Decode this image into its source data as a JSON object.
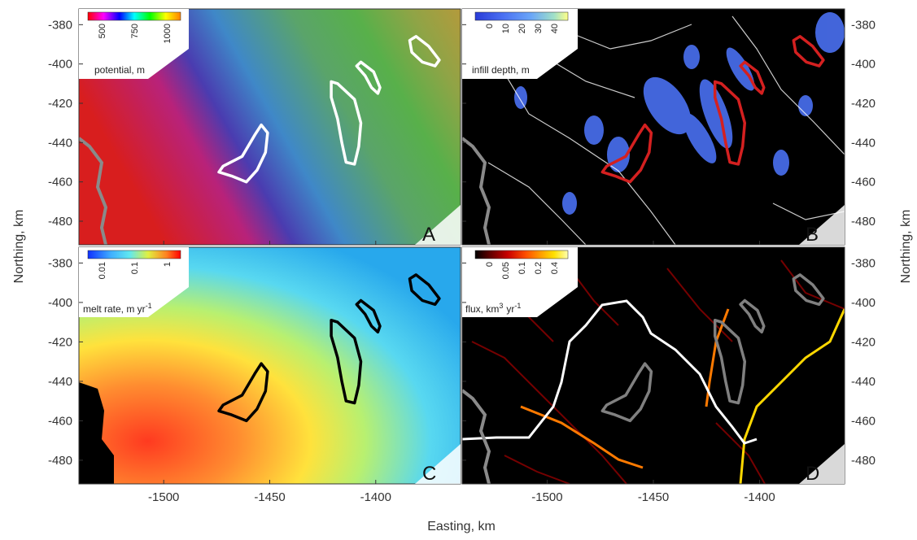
{
  "chart_data": {
    "type": "heatmap",
    "xlabel": "Easting, km",
    "ylabel": "Northing, km",
    "xlim": [
      -1540,
      -1360
    ],
    "ylim": [
      -492,
      -372
    ],
    "x_ticks": [
      "-1500",
      "-1450",
      "-1400"
    ],
    "y_ticks": [
      "-380",
      "-400",
      "-420",
      "-440",
      "-460",
      "-480"
    ],
    "outlines": [
      {
        "name": "outline-1",
        "points": [
          [
            -1472,
            -452
          ],
          [
            -1463,
            -447
          ],
          [
            -1457,
            -436
          ],
          [
            -1454,
            -431
          ],
          [
            -1451,
            -435
          ],
          [
            -1452,
            -445
          ],
          [
            -1456,
            -454
          ],
          [
            -1461,
            -460
          ],
          [
            -1468,
            -457
          ],
          [
            -1474,
            -455
          ],
          [
            -1472,
            -452
          ]
        ]
      },
      {
        "name": "outline-2",
        "points": [
          [
            -1418,
            -410
          ],
          [
            -1410,
            -418
          ],
          [
            -1407,
            -430
          ],
          [
            -1408,
            -442
          ],
          [
            -1410,
            -451
          ],
          [
            -1414,
            -450
          ],
          [
            -1416,
            -440
          ],
          [
            -1418,
            -428
          ],
          [
            -1421,
            -417
          ],
          [
            -1421,
            -409
          ],
          [
            -1418,
            -410
          ]
        ]
      },
      {
        "name": "outline-3",
        "points": [
          [
            -1407,
            -399
          ],
          [
            -1401,
            -404
          ],
          [
            -1398,
            -412
          ],
          [
            -1399,
            -415
          ],
          [
            -1402,
            -412
          ],
          [
            -1405,
            -406
          ],
          [
            -1409,
            -401
          ],
          [
            -1407,
            -399
          ]
        ]
      },
      {
        "name": "outline-4",
        "points": [
          [
            -1381,
            -386
          ],
          [
            -1375,
            -391
          ],
          [
            -1370,
            -398
          ],
          [
            -1372,
            -401
          ],
          [
            -1378,
            -399
          ],
          [
            -1383,
            -394
          ],
          [
            -1384,
            -388
          ],
          [
            -1381,
            -386
          ]
        ]
      }
    ],
    "panels": [
      {
        "id": "A",
        "label": "A",
        "colorbar": {
          "title": "potential, m",
          "ticks": [
            "500",
            "750",
            "1000"
          ],
          "colors": [
            "#ff0000",
            "#ff00ff",
            "#0000ff",
            "#00ffff",
            "#00ff00",
            "#ffff00",
            "#ff8000"
          ]
        },
        "outline_color": "#ffffff",
        "background": [
          "#d81e1e",
          "#b8227a",
          "#4a3cb0",
          "#3f88c8",
          "#5aa46a",
          "#58b04a",
          "#8fa446",
          "#b49a3c"
        ]
      },
      {
        "id": "B",
        "label": "B",
        "colorbar": {
          "title": "infill depth, m",
          "ticks": [
            "0",
            "10",
            "20",
            "30",
            "40"
          ],
          "colors": [
            "#2a3cd8",
            "#4a70f2",
            "#6aa6f8",
            "#a0e0c8",
            "#ffff88"
          ]
        },
        "outline_color": "#d42020",
        "background": [
          "#000000"
        ]
      },
      {
        "id": "C",
        "label": "C",
        "colorbar": {
          "title": "melt rate, m yr",
          "title_superscript": "-1",
          "ticks": [
            "0.01",
            "0.1",
            "1"
          ],
          "colors": [
            "#1030ff",
            "#40b0ff",
            "#60e8f0",
            "#e0f040",
            "#ff8020",
            "#ff0000"
          ]
        },
        "outline_color": "#000000",
        "background": [
          "#ff3a20",
          "#ff8c30",
          "#ffe23c",
          "#b8f070",
          "#58d8f0",
          "#28a8ec"
        ]
      },
      {
        "id": "D",
        "label": "D",
        "colorbar": {
          "title": "flux, km",
          "title_superscript": "3",
          "title_suffix": "yr",
          "title_suffix_superscript": "-1",
          "ticks": [
            "0",
            "0.05",
            "0.1",
            "0.2",
            "0.4"
          ],
          "colors": [
            "#000000",
            "#5a0000",
            "#c80000",
            "#ff5000",
            "#ff9a00",
            "#ffe000",
            "#ffffb0"
          ]
        },
        "outline_color": "#808080",
        "background": [
          "#000000"
        ]
      }
    ]
  }
}
